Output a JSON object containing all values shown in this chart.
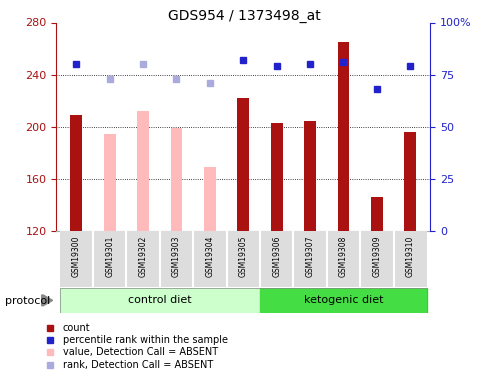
{
  "title": "GDS954 / 1373498_at",
  "samples": [
    "GSM19300",
    "GSM19301",
    "GSM19302",
    "GSM19303",
    "GSM19304",
    "GSM19305",
    "GSM19306",
    "GSM19307",
    "GSM19308",
    "GSM19309",
    "GSM19310"
  ],
  "count_values": [
    209,
    194,
    212,
    199,
    169,
    222,
    203,
    204,
    265,
    146,
    196
  ],
  "count_absent": [
    false,
    true,
    true,
    true,
    true,
    false,
    false,
    false,
    false,
    false,
    false
  ],
  "rank_values": [
    80,
    73,
    80,
    73,
    71,
    82,
    79,
    80,
    81,
    68,
    79
  ],
  "rank_absent": [
    false,
    true,
    true,
    true,
    true,
    false,
    false,
    false,
    false,
    false,
    false
  ],
  "ylim_left": [
    120,
    280
  ],
  "ylim_right": [
    0,
    100
  ],
  "yticks_left": [
    120,
    160,
    200,
    240,
    280
  ],
  "yticks_right": [
    0,
    25,
    50,
    75,
    100
  ],
  "ytick_labels_right": [
    "0",
    "25",
    "50",
    "75",
    "100%"
  ],
  "color_present_bar": "#aa1111",
  "color_absent_bar": "#ffbbbb",
  "color_present_rank": "#2222cc",
  "color_absent_rank": "#aaaadd",
  "color_ctrl_diet": "#ccffcc",
  "color_keto_diet": "#44dd44",
  "color_sample_bg": "#dddddd",
  "protocol_label": "protocol",
  "background_color": "#ffffff",
  "bar_width": 0.35,
  "n_control": 6,
  "n_keto": 5
}
